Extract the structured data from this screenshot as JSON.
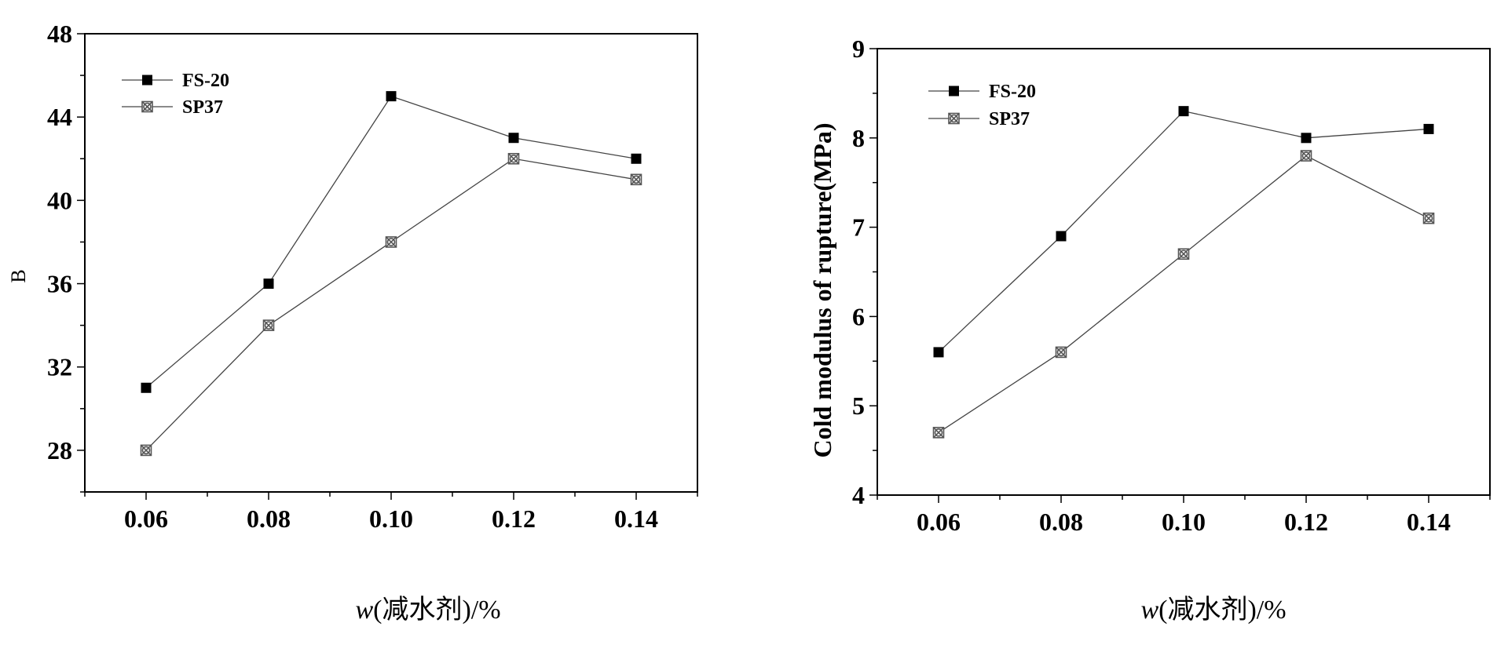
{
  "chart_data": [
    {
      "type": "line",
      "title": "",
      "xlabel": "w(减水剂)/%",
      "xlabel_parts": {
        "italic": "w",
        "rest": "(减水剂)/%"
      },
      "ylabel": "B",
      "x": [
        0.06,
        0.08,
        0.1,
        0.12,
        0.14
      ],
      "xtick_labels": [
        "0.06",
        "0.08",
        "0.10",
        "0.12",
        "0.14"
      ],
      "xlim": [
        0.05,
        0.15
      ],
      "ylim": [
        26,
        48
      ],
      "yticks": [
        28,
        32,
        36,
        40,
        44,
        48
      ],
      "ytick_labels": [
        "28",
        "32",
        "36",
        "40",
        "44",
        "48"
      ],
      "legend_position": "top-left",
      "series": [
        {
          "name": "FS-20",
          "marker": "filled-square",
          "values": [
            31,
            36,
            45,
            43,
            42
          ]
        },
        {
          "name": "SP37",
          "marker": "crossed-square",
          "values": [
            28,
            34,
            38,
            42,
            41
          ]
        }
      ]
    },
    {
      "type": "line",
      "title": "",
      "xlabel": "w(减水剂)/%",
      "xlabel_parts": {
        "italic": "w",
        "rest": "(减水剂)/%"
      },
      "ylabel": "Cold modulus of rupture(MPa)",
      "x": [
        0.06,
        0.08,
        0.1,
        0.12,
        0.14
      ],
      "xtick_labels": [
        "0.06",
        "0.08",
        "0.10",
        "0.12",
        "0.14"
      ],
      "xlim": [
        0.05,
        0.15
      ],
      "ylim": [
        4,
        9
      ],
      "yticks": [
        4,
        5,
        6,
        7,
        8,
        9
      ],
      "ytick_labels": [
        "4",
        "5",
        "6",
        "7",
        "8",
        "9"
      ],
      "legend_position": "top-left",
      "series": [
        {
          "name": "FS-20",
          "marker": "filled-square",
          "values": [
            5.6,
            6.9,
            8.3,
            8.0,
            8.1
          ]
        },
        {
          "name": "SP37",
          "marker": "crossed-square",
          "values": [
            4.7,
            5.6,
            6.7,
            7.8,
            7.1
          ]
        }
      ]
    }
  ]
}
